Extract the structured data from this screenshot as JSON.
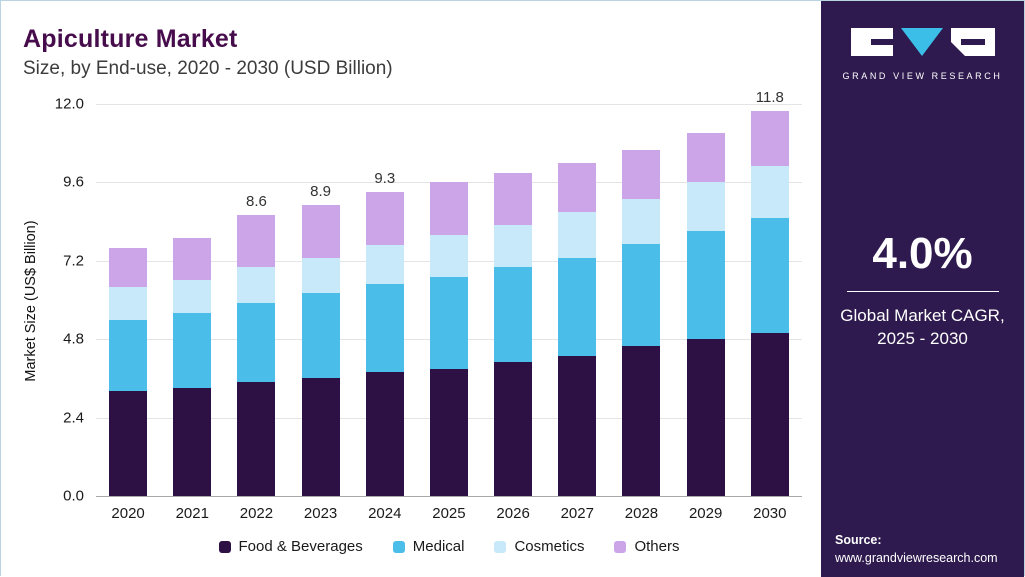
{
  "header": {
    "title": "Apiculture Market",
    "subtitle": "Size, by End-use, 2020 - 2030 (USD Billion)"
  },
  "colors": {
    "sidebar_bg": "#2e1a4e",
    "accent_line": "#2b7ea1",
    "title_color": "#470c4c",
    "logo_triangle": "#3bbfe9"
  },
  "chart_data": {
    "type": "bar",
    "subtype": "stacked",
    "title": "Apiculture Market Size, by End-use, 2020 - 2030 (USD Billion)",
    "xlabel": "",
    "ylabel": "Market Size (US$ Billion)",
    "ylim": [
      0,
      12.0
    ],
    "yticks": [
      "0.0",
      "2.4",
      "4.8",
      "7.2",
      "9.6",
      "12.0"
    ],
    "grid": "horizontal",
    "legend_position": "bottom",
    "categories": [
      "2020",
      "2021",
      "2022",
      "2023",
      "2024",
      "2025",
      "2026",
      "2027",
      "2028",
      "2029",
      "2030"
    ],
    "series": [
      {
        "name": "Food & Beverages",
        "color": "#2e1144",
        "values": [
          3.2,
          3.3,
          3.5,
          3.6,
          3.8,
          3.9,
          4.1,
          4.3,
          4.6,
          4.8,
          5.0
        ]
      },
      {
        "name": "Medical",
        "color": "#4abde9",
        "values": [
          2.2,
          2.3,
          2.4,
          2.6,
          2.7,
          2.8,
          2.9,
          3.0,
          3.1,
          3.3,
          3.5
        ]
      },
      {
        "name": "Cosmetics",
        "color": "#c7e9fa",
        "values": [
          1.0,
          1.0,
          1.1,
          1.1,
          1.2,
          1.3,
          1.3,
          1.4,
          1.4,
          1.5,
          1.6
        ]
      },
      {
        "name": "Others",
        "color": "#cba5e8",
        "values": [
          1.2,
          1.3,
          1.6,
          1.6,
          1.6,
          1.6,
          1.6,
          1.5,
          1.5,
          1.5,
          1.7
        ]
      }
    ],
    "totals": [
      7.6,
      7.9,
      8.6,
      8.9,
      9.3,
      9.6,
      9.9,
      10.2,
      10.6,
      11.1,
      11.8
    ],
    "totals_labeled": {
      "2022": "8.6",
      "2023": "8.9",
      "2024": "9.3",
      "2030": "11.8"
    }
  },
  "sidebar": {
    "brand": "GRAND VIEW RESEARCH",
    "cagr_value": "4.0%",
    "cagr_label_line1": "Global Market CAGR,",
    "cagr_label_line2": "2025 - 2030",
    "source_label": "Source:",
    "source_url": "www.grandviewresearch.com"
  }
}
